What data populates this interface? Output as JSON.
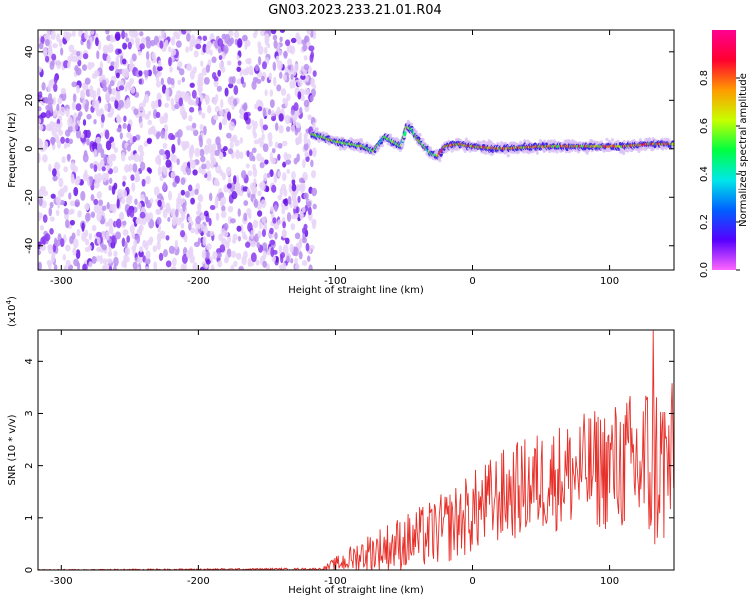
{
  "title": "GN03.2023.233.21.01.R04",
  "colors": {
    "snr_line": "#e8302a",
    "spectrogram_scatter": "#6a14e6",
    "colorbar_stops": [
      "#ff66ff",
      "#5500ff",
      "#0060ff",
      "#00e8e8",
      "#00ff40",
      "#c8ff00",
      "#ff9a00",
      "#ff0030",
      "#ff0090"
    ]
  },
  "chart_data": [
    {
      "type": "heatmap",
      "title": "GN03.2023.233.21.01.R04",
      "xlabel": "Height of straight line (km)",
      "ylabel": "Frequency (Hz)",
      "xlim": [
        -317,
        147
      ],
      "ylim": [
        -50,
        49
      ],
      "xticks": [
        -300,
        -200,
        -100,
        0,
        100
      ],
      "xtick_labels": [
        "-300",
        "-200",
        "-100",
        "0",
        "100"
      ],
      "yticks": [
        -40,
        -20,
        0,
        20,
        40
      ],
      "ytick_labels": [
        "-40",
        "-20",
        "0",
        "20",
        "40"
      ],
      "colorbar": {
        "label": "Normalized spectral amplitude",
        "range": [
          0,
          1
        ],
        "ticks": [
          0.0,
          0.2,
          0.4,
          0.6,
          0.8
        ],
        "tick_labels": [
          "0.0",
          "0.2",
          "0.4",
          "0.6",
          "0.8"
        ]
      },
      "regions": [
        {
          "description_value": "broadband noise",
          "x": [
            -317,
            -115
          ],
          "freq": [
            -50,
            49
          ],
          "amplitude": [
            0.0,
            0.2
          ]
        },
        {
          "description_value": "signal band",
          "x": [
            -117,
            147
          ],
          "freq_center": 1,
          "amplitude_peak": 0.9
        }
      ],
      "band_track": [
        {
          "x": -117,
          "f": 6
        },
        {
          "x": -110,
          "f": 5
        },
        {
          "x": -100,
          "f": 3
        },
        {
          "x": -90,
          "f": 2
        },
        {
          "x": -80,
          "f": 1
        },
        {
          "x": -72,
          "f": -1
        },
        {
          "x": -64,
          "f": 5
        },
        {
          "x": -58,
          "f": 3
        },
        {
          "x": -52,
          "f": 1
        },
        {
          "x": -48,
          "f": 9
        },
        {
          "x": -44,
          "f": 8
        },
        {
          "x": -40,
          "f": 4
        },
        {
          "x": -35,
          "f": 1
        },
        {
          "x": -30,
          "f": -2
        },
        {
          "x": -25,
          "f": -3
        },
        {
          "x": -20,
          "f": 1
        },
        {
          "x": -10,
          "f": 2
        },
        {
          "x": 0,
          "f": 1
        },
        {
          "x": 20,
          "f": 0
        },
        {
          "x": 50,
          "f": 1
        },
        {
          "x": 80,
          "f": 1
        },
        {
          "x": 110,
          "f": 1
        },
        {
          "x": 130,
          "f": 2
        },
        {
          "x": 147,
          "f": 2
        }
      ]
    },
    {
      "type": "line",
      "xlabel": "Height of straight line (km)",
      "ylabel": "SNR (10 * v/v)",
      "y_multiplier_label": "(x10",
      "y_multiplier_exp": "4",
      "y_multiplier_close": ")",
      "xlim": [
        -317,
        147
      ],
      "ylim": [
        0,
        4.6
      ],
      "xticks": [
        -300,
        -200,
        -100,
        0,
        100
      ],
      "xtick_labels": [
        "-300",
        "-200",
        "-100",
        "0",
        "100"
      ],
      "yticks": [
        0,
        1,
        2,
        3,
        4
      ],
      "ytick_labels": [
        "0",
        "1",
        "2",
        "3",
        "4"
      ],
      "envelope": [
        {
          "x": -317,
          "mean": 0.0,
          "spread": 0.01
        },
        {
          "x": -110,
          "mean": 0.02,
          "spread": 0.02
        },
        {
          "x": -100,
          "mean": 0.1,
          "spread": 0.15
        },
        {
          "x": -80,
          "mean": 0.3,
          "spread": 0.35
        },
        {
          "x": -60,
          "mean": 0.45,
          "spread": 0.5
        },
        {
          "x": -40,
          "mean": 0.6,
          "spread": 0.6
        },
        {
          "x": -20,
          "mean": 0.8,
          "spread": 0.7
        },
        {
          "x": 0,
          "mean": 1.1,
          "spread": 0.8
        },
        {
          "x": 20,
          "mean": 1.4,
          "spread": 0.9
        },
        {
          "x": 50,
          "mean": 1.7,
          "spread": 1.0
        },
        {
          "x": 80,
          "mean": 1.9,
          "spread": 1.1
        },
        {
          "x": 110,
          "mean": 2.0,
          "spread": 1.3
        },
        {
          "x": 130,
          "mean": 2.0,
          "spread": 1.8
        },
        {
          "x": 147,
          "mean": 2.0,
          "spread": 1.6
        }
      ],
      "peak": {
        "x": 132,
        "y": 4.6
      }
    }
  ]
}
